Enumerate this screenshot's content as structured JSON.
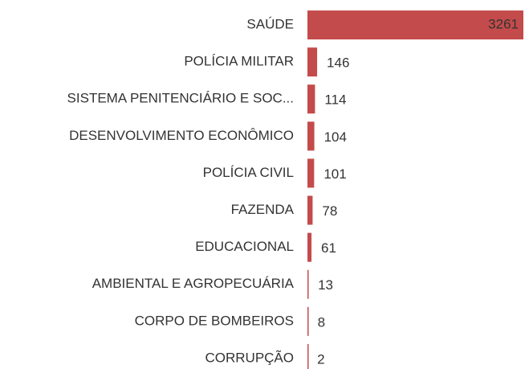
{
  "chart_data": {
    "type": "bar",
    "orientation": "horizontal",
    "categories": [
      "SAÚDE",
      "POLÍCIA MILITAR",
      "SISTEMA PENITENCIÁRIO E SOC...",
      "DESENVOLVIMENTO ECONÔMICO",
      "POLÍCIA CIVIL",
      "FAZENDA",
      "EDUCACIONAL",
      "AMBIENTAL E AGROPECUÁRIA",
      "CORPO DE BOMBEIROS",
      "CORRUPÇÃO"
    ],
    "values": [
      3261,
      146,
      114,
      104,
      101,
      78,
      61,
      13,
      8,
      2
    ],
    "color": "#c44b4b"
  }
}
